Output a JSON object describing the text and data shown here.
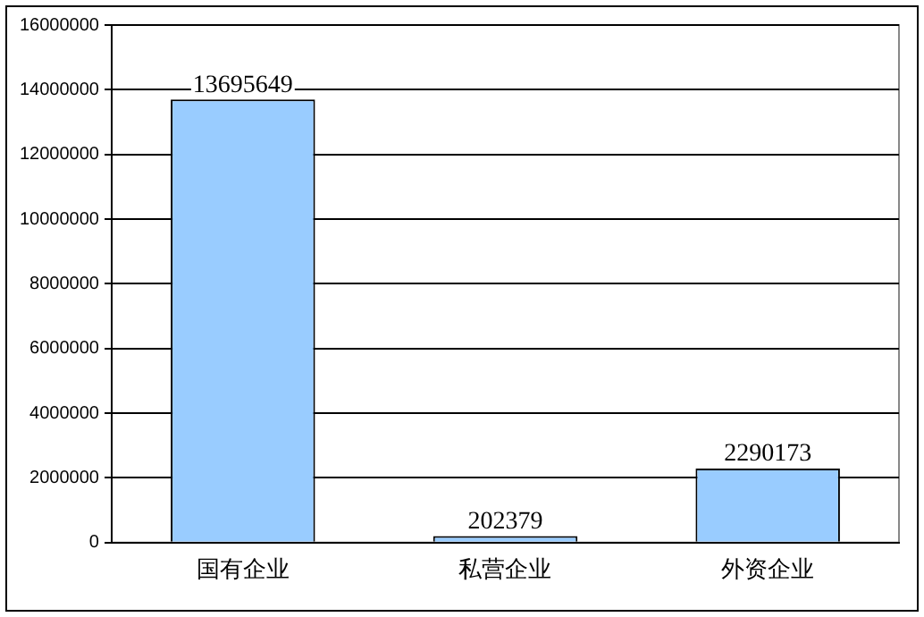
{
  "chart_data": {
    "type": "bar",
    "categories": [
      "国有企业",
      "私营企业",
      "外资企业"
    ],
    "values": [
      13695649,
      202379,
      2290173
    ],
    "color": "#99ccff",
    "ylim": [
      0,
      16000000
    ],
    "yticks": [
      0,
      2000000,
      4000000,
      6000000,
      8000000,
      10000000,
      12000000,
      14000000,
      16000000
    ],
    "grid": "y",
    "data_labels": true,
    "legend": false
  }
}
